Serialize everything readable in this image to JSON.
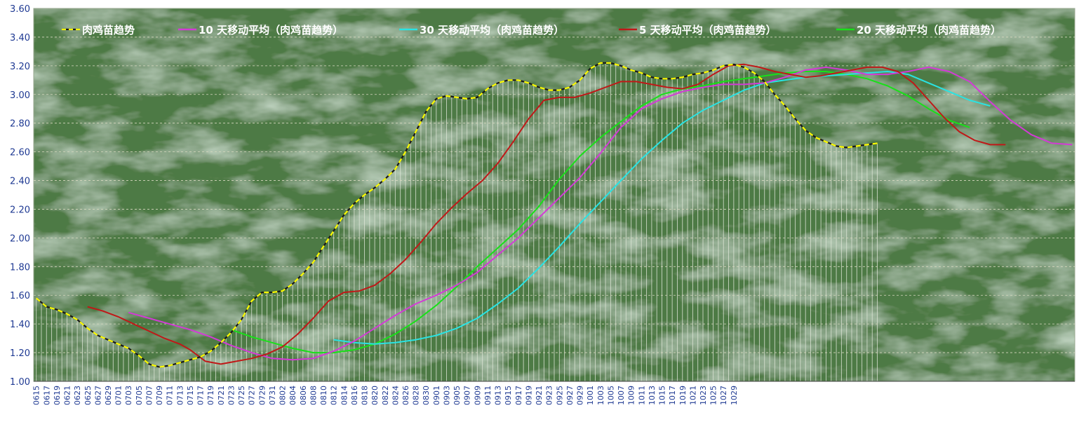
{
  "chart_data": {
    "type": "line",
    "ylim": [
      1.0,
      3.6
    ],
    "y_ticks": [
      "1.00",
      "1.20",
      "1.40",
      "1.60",
      "1.80",
      "2.00",
      "2.20",
      "2.40",
      "2.60",
      "2.80",
      "3.00",
      "3.20",
      "3.40",
      "3.60"
    ],
    "x_tick_labels": [
      "0615",
      "0617",
      "0619",
      "0621",
      "0623",
      "0625",
      "0627",
      "0629",
      "0701",
      "0703",
      "0705",
      "0707",
      "0709",
      "0711",
      "0713",
      "0715",
      "0717",
      "0719",
      "0721",
      "0723",
      "0725",
      "0727",
      "0729",
      "0731",
      "0802",
      "0804",
      "0806",
      "0808",
      "0810",
      "0812",
      "0814",
      "0816",
      "0818",
      "0820",
      "0822",
      "0824",
      "0826",
      "0828",
      "0830",
      "0901",
      "0903",
      "0905",
      "0907",
      "0909",
      "0911",
      "0913",
      "0915",
      "0917",
      "0919",
      "0921",
      "0923",
      "0925",
      "0927",
      "0929",
      "1001",
      "1003",
      "1005",
      "1007",
      "1009",
      "1011",
      "1013",
      "1015",
      "1017",
      "1019",
      "1021",
      "1023",
      "1025",
      "1027",
      "1029"
    ],
    "grid": true,
    "legend_position": "top",
    "colors": {
      "plot_bg": "#4e7a44",
      "grid": "#d8d8c0",
      "drop_lines": "#dfe6d8",
      "main": "#ffff00",
      "ma10": "#d33ad6",
      "ma30": "#29e3e3",
      "ma5": "#c01818",
      "ma20": "#19e019",
      "tick_text": "#1f3a93"
    },
    "series": [
      {
        "name": "肉鸡苗趋势",
        "key": "main",
        "points": [
          [
            0,
            1.58
          ],
          [
            2,
            1.52
          ],
          [
            4,
            1.5
          ],
          [
            6,
            1.47
          ],
          [
            8,
            1.43
          ],
          [
            10,
            1.37
          ],
          [
            12,
            1.32
          ],
          [
            14,
            1.29
          ],
          [
            16,
            1.26
          ],
          [
            18,
            1.23
          ],
          [
            20,
            1.18
          ],
          [
            22,
            1.12
          ],
          [
            24,
            1.1
          ],
          [
            26,
            1.11
          ],
          [
            28,
            1.13
          ],
          [
            30,
            1.15
          ],
          [
            32,
            1.17
          ],
          [
            34,
            1.21
          ],
          [
            36,
            1.27
          ],
          [
            38,
            1.34
          ],
          [
            40,
            1.43
          ],
          [
            42,
            1.56
          ],
          [
            44,
            1.62
          ],
          [
            46,
            1.62
          ],
          [
            48,
            1.63
          ],
          [
            50,
            1.68
          ],
          [
            52,
            1.75
          ],
          [
            54,
            1.83
          ],
          [
            56,
            1.94
          ],
          [
            58,
            2.05
          ],
          [
            60,
            2.16
          ],
          [
            62,
            2.24
          ],
          [
            64,
            2.3
          ],
          [
            66,
            2.35
          ],
          [
            68,
            2.41
          ],
          [
            70,
            2.48
          ],
          [
            72,
            2.6
          ],
          [
            74,
            2.74
          ],
          [
            76,
            2.88
          ],
          [
            78,
            2.97
          ],
          [
            80,
            2.99
          ],
          [
            82,
            2.98
          ],
          [
            84,
            2.97
          ],
          [
            86,
            2.98
          ],
          [
            88,
            3.04
          ],
          [
            90,
            3.08
          ],
          [
            92,
            3.1
          ],
          [
            94,
            3.1
          ],
          [
            96,
            3.08
          ],
          [
            98,
            3.05
          ],
          [
            100,
            3.03
          ],
          [
            102,
            3.03
          ],
          [
            104,
            3.05
          ],
          [
            106,
            3.1
          ],
          [
            108,
            3.18
          ],
          [
            110,
            3.22
          ],
          [
            112,
            3.22
          ],
          [
            114,
            3.2
          ],
          [
            116,
            3.17
          ],
          [
            118,
            3.15
          ],
          [
            120,
            3.12
          ],
          [
            122,
            3.11
          ],
          [
            124,
            3.11
          ],
          [
            126,
            3.12
          ],
          [
            128,
            3.14
          ],
          [
            130,
            3.15
          ],
          [
            132,
            3.17
          ],
          [
            134,
            3.2
          ],
          [
            136,
            3.21
          ],
          [
            138,
            3.19
          ],
          [
            140,
            3.15
          ],
          [
            142,
            3.09
          ],
          [
            144,
            3.0
          ],
          [
            146,
            2.92
          ],
          [
            148,
            2.83
          ],
          [
            150,
            2.75
          ],
          [
            152,
            2.7
          ],
          [
            154,
            2.67
          ],
          [
            156,
            2.64
          ],
          [
            158,
            2.63
          ],
          [
            160,
            2.64
          ],
          [
            162,
            2.65
          ],
          [
            164,
            2.66
          ]
        ]
      },
      {
        "name": "10 天移动平均（肉鸡苗趋势）",
        "key": "ma10",
        "points": [
          [
            18,
            1.48
          ],
          [
            22,
            1.44
          ],
          [
            26,
            1.4
          ],
          [
            30,
            1.36
          ],
          [
            34,
            1.31
          ],
          [
            38,
            1.25
          ],
          [
            42,
            1.2
          ],
          [
            46,
            1.16
          ],
          [
            50,
            1.15
          ],
          [
            54,
            1.16
          ],
          [
            58,
            1.21
          ],
          [
            62,
            1.28
          ],
          [
            66,
            1.37
          ],
          [
            70,
            1.46
          ],
          [
            74,
            1.54
          ],
          [
            78,
            1.6
          ],
          [
            82,
            1.67
          ],
          [
            86,
            1.76
          ],
          [
            90,
            1.88
          ],
          [
            94,
            2.0
          ],
          [
            98,
            2.14
          ],
          [
            102,
            2.28
          ],
          [
            106,
            2.42
          ],
          [
            110,
            2.59
          ],
          [
            114,
            2.77
          ],
          [
            118,
            2.9
          ],
          [
            122,
            2.97
          ],
          [
            126,
            3.02
          ],
          [
            130,
            3.05
          ],
          [
            134,
            3.07
          ],
          [
            138,
            3.07
          ],
          [
            142,
            3.08
          ],
          [
            146,
            3.12
          ],
          [
            150,
            3.17
          ],
          [
            154,
            3.19
          ],
          [
            158,
            3.17
          ],
          [
            162,
            3.14
          ],
          [
            166,
            3.14
          ],
          [
            170,
            3.16
          ],
          [
            174,
            3.19
          ],
          [
            178,
            3.16
          ],
          [
            182,
            3.09
          ],
          [
            186,
            2.95
          ],
          [
            190,
            2.82
          ],
          [
            194,
            2.72
          ],
          [
            198,
            2.66
          ],
          [
            202,
            2.65
          ]
        ]
      },
      {
        "name": "30 天移动平均（肉鸡苗趋势）",
        "key": "ma30",
        "points": [
          [
            58,
            1.29
          ],
          [
            62,
            1.27
          ],
          [
            66,
            1.26
          ],
          [
            70,
            1.27
          ],
          [
            74,
            1.29
          ],
          [
            78,
            1.32
          ],
          [
            82,
            1.37
          ],
          [
            86,
            1.44
          ],
          [
            90,
            1.54
          ],
          [
            94,
            1.65
          ],
          [
            98,
            1.79
          ],
          [
            102,
            1.94
          ],
          [
            106,
            2.1
          ],
          [
            110,
            2.25
          ],
          [
            114,
            2.4
          ],
          [
            118,
            2.55
          ],
          [
            122,
            2.68
          ],
          [
            126,
            2.8
          ],
          [
            130,
            2.89
          ],
          [
            134,
            2.96
          ],
          [
            138,
            3.03
          ],
          [
            142,
            3.08
          ],
          [
            146,
            3.1
          ],
          [
            150,
            3.12
          ],
          [
            154,
            3.13
          ],
          [
            158,
            3.14
          ],
          [
            162,
            3.15
          ],
          [
            166,
            3.16
          ],
          [
            170,
            3.14
          ],
          [
            174,
            3.08
          ],
          [
            178,
            3.02
          ],
          [
            182,
            2.96
          ],
          [
            186,
            2.92
          ]
        ]
      },
      {
        "name": "5 天移动平均（肉鸡苗趋势）",
        "key": "ma5",
        "points": [
          [
            10,
            1.52
          ],
          [
            13,
            1.49
          ],
          [
            16,
            1.45
          ],
          [
            19,
            1.4
          ],
          [
            22,
            1.35
          ],
          [
            25,
            1.3
          ],
          [
            28,
            1.26
          ],
          [
            30,
            1.22
          ],
          [
            33,
            1.14
          ],
          [
            36,
            1.12
          ],
          [
            39,
            1.14
          ],
          [
            42,
            1.16
          ],
          [
            45,
            1.19
          ],
          [
            48,
            1.24
          ],
          [
            51,
            1.33
          ],
          [
            54,
            1.44
          ],
          [
            57,
            1.56
          ],
          [
            60,
            1.62
          ],
          [
            63,
            1.63
          ],
          [
            66,
            1.67
          ],
          [
            69,
            1.75
          ],
          [
            72,
            1.85
          ],
          [
            75,
            1.97
          ],
          [
            78,
            2.1
          ],
          [
            81,
            2.21
          ],
          [
            84,
            2.31
          ],
          [
            87,
            2.4
          ],
          [
            90,
            2.52
          ],
          [
            93,
            2.67
          ],
          [
            96,
            2.83
          ],
          [
            99,
            2.96
          ],
          [
            102,
            2.98
          ],
          [
            105,
            2.98
          ],
          [
            108,
            3.01
          ],
          [
            111,
            3.05
          ],
          [
            114,
            3.09
          ],
          [
            117,
            3.09
          ],
          [
            120,
            3.07
          ],
          [
            123,
            3.05
          ],
          [
            126,
            3.04
          ],
          [
            129,
            3.07
          ],
          [
            132,
            3.14
          ],
          [
            135,
            3.2
          ],
          [
            138,
            3.21
          ],
          [
            141,
            3.19
          ],
          [
            144,
            3.16
          ],
          [
            147,
            3.14
          ],
          [
            150,
            3.12
          ],
          [
            153,
            3.13
          ],
          [
            156,
            3.15
          ],
          [
            159,
            3.17
          ],
          [
            162,
            3.19
          ],
          [
            165,
            3.19
          ],
          [
            168,
            3.16
          ],
          [
            171,
            3.08
          ],
          [
            174,
            2.96
          ],
          [
            177,
            2.84
          ],
          [
            180,
            2.74
          ],
          [
            183,
            2.68
          ],
          [
            186,
            2.65
          ],
          [
            189,
            2.65
          ]
        ]
      },
      {
        "name": "20 天移动平均（肉鸡苗趋势）",
        "key": "ma20",
        "points": [
          [
            38,
            1.36
          ],
          [
            42,
            1.31
          ],
          [
            46,
            1.27
          ],
          [
            50,
            1.23
          ],
          [
            54,
            1.2
          ],
          [
            58,
            1.2
          ],
          [
            62,
            1.22
          ],
          [
            66,
            1.26
          ],
          [
            70,
            1.33
          ],
          [
            74,
            1.42
          ],
          [
            78,
            1.53
          ],
          [
            82,
            1.66
          ],
          [
            86,
            1.8
          ],
          [
            90,
            1.93
          ],
          [
            94,
            2.06
          ],
          [
            98,
            2.22
          ],
          [
            102,
            2.41
          ],
          [
            106,
            2.57
          ],
          [
            110,
            2.7
          ],
          [
            114,
            2.81
          ],
          [
            118,
            2.92
          ],
          [
            122,
            3.0
          ],
          [
            126,
            3.04
          ],
          [
            130,
            3.06
          ],
          [
            134,
            3.09
          ],
          [
            138,
            3.11
          ],
          [
            142,
            3.13
          ],
          [
            146,
            3.15
          ],
          [
            150,
            3.16
          ],
          [
            154,
            3.16
          ],
          [
            158,
            3.14
          ],
          [
            162,
            3.11
          ],
          [
            166,
            3.06
          ],
          [
            170,
            2.99
          ],
          [
            174,
            2.9
          ],
          [
            178,
            2.82
          ],
          [
            182,
            2.77
          ]
        ]
      }
    ]
  }
}
